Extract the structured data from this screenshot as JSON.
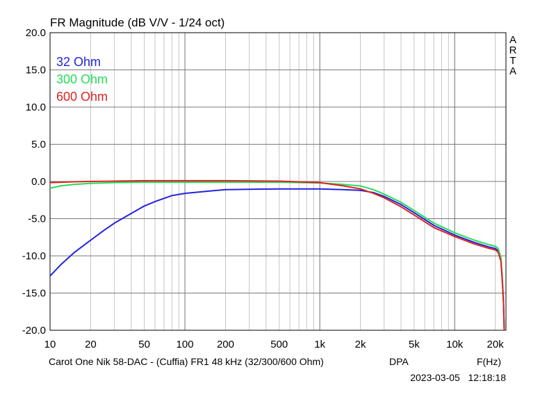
{
  "chart_data": {
    "type": "line",
    "title": "FR Magnitude (dB V/V - 1/24 oct)",
    "side_label": "ARTA",
    "x_scale": "log",
    "xlim": [
      10,
      24000
    ],
    "ylim": [
      -20,
      20
    ],
    "x_ticks": [
      {
        "value": 10,
        "label": "10"
      },
      {
        "value": 20,
        "label": "20"
      },
      {
        "value": 50,
        "label": "50"
      },
      {
        "value": 100,
        "label": "100"
      },
      {
        "value": 200,
        "label": "200"
      },
      {
        "value": 500,
        "label": "500"
      },
      {
        "value": 1000,
        "label": "1k"
      },
      {
        "value": 2000,
        "label": "2k"
      },
      {
        "value": 5000,
        "label": "5k"
      },
      {
        "value": 10000,
        "label": "10k"
      },
      {
        "value": 20000,
        "label": "20k"
      }
    ],
    "y_ticks": [
      {
        "value": 20,
        "label": "20.0"
      },
      {
        "value": 15,
        "label": "15.0"
      },
      {
        "value": 10,
        "label": "10.0"
      },
      {
        "value": 5,
        "label": "5.0"
      },
      {
        "value": 0,
        "label": "0.0"
      },
      {
        "value": -5,
        "label": "-5.0"
      },
      {
        "value": -10,
        "label": "-10.0"
      },
      {
        "value": -15,
        "label": "-15.0"
      },
      {
        "value": -20,
        "label": "-20.0"
      }
    ],
    "grid": true,
    "legend_position": "top-left",
    "series": [
      {
        "name": "32 Ohm",
        "color": "#2222dd",
        "points": [
          [
            10,
            -12.7
          ],
          [
            12,
            -11.2
          ],
          [
            15,
            -9.6
          ],
          [
            20,
            -7.9
          ],
          [
            25,
            -6.6
          ],
          [
            30,
            -5.6
          ],
          [
            40,
            -4.3
          ],
          [
            50,
            -3.3
          ],
          [
            60,
            -2.7
          ],
          [
            80,
            -1.9
          ],
          [
            100,
            -1.6
          ],
          [
            150,
            -1.3
          ],
          [
            200,
            -1.1
          ],
          [
            300,
            -1.05
          ],
          [
            500,
            -1.0
          ],
          [
            1000,
            -1.0
          ],
          [
            1500,
            -1.1
          ],
          [
            2000,
            -1.2
          ],
          [
            2500,
            -1.5
          ],
          [
            3000,
            -2.0
          ],
          [
            4000,
            -3.1
          ],
          [
            5000,
            -4.2
          ],
          [
            7000,
            -5.9
          ],
          [
            10000,
            -7.2
          ],
          [
            14000,
            -8.2
          ],
          [
            18000,
            -8.8
          ],
          [
            20000,
            -9.0
          ],
          [
            21000,
            -9.3
          ],
          [
            22000,
            -10.5
          ],
          [
            22500,
            -13.0
          ],
          [
            23000,
            -16.0
          ],
          [
            23300,
            -20.0
          ]
        ]
      },
      {
        "name": "300 Ohm",
        "color": "#22dd55",
        "points": [
          [
            10,
            -0.9
          ],
          [
            12,
            -0.6
          ],
          [
            15,
            -0.4
          ],
          [
            20,
            -0.25
          ],
          [
            30,
            -0.15
          ],
          [
            50,
            -0.1
          ],
          [
            100,
            -0.1
          ],
          [
            300,
            -0.1
          ],
          [
            500,
            -0.1
          ],
          [
            1000,
            -0.2
          ],
          [
            1500,
            -0.4
          ],
          [
            2000,
            -0.6
          ],
          [
            2500,
            -1.1
          ],
          [
            3000,
            -1.7
          ],
          [
            4000,
            -2.8
          ],
          [
            5000,
            -3.9
          ],
          [
            7000,
            -5.6
          ],
          [
            10000,
            -6.9
          ],
          [
            14000,
            -7.9
          ],
          [
            18000,
            -8.5
          ],
          [
            20000,
            -8.7
          ],
          [
            21000,
            -9.0
          ],
          [
            22000,
            -10.2
          ],
          [
            22500,
            -12.8
          ],
          [
            23000,
            -16.0
          ],
          [
            23300,
            -20.0
          ]
        ]
      },
      {
        "name": "600 Ohm",
        "color": "#dd2222",
        "points": [
          [
            10,
            -0.15
          ],
          [
            15,
            -0.05
          ],
          [
            20,
            0.0
          ],
          [
            30,
            0.05
          ],
          [
            50,
            0.1
          ],
          [
            100,
            0.1
          ],
          [
            200,
            0.1
          ],
          [
            500,
            0.05
          ],
          [
            1000,
            -0.15
          ],
          [
            1500,
            -0.6
          ],
          [
            2000,
            -1.0
          ],
          [
            2500,
            -1.6
          ],
          [
            3000,
            -2.2
          ],
          [
            4000,
            -3.4
          ],
          [
            5000,
            -4.5
          ],
          [
            7000,
            -6.2
          ],
          [
            10000,
            -7.4
          ],
          [
            14000,
            -8.4
          ],
          [
            18000,
            -9.0
          ],
          [
            20000,
            -9.2
          ],
          [
            21000,
            -9.5
          ],
          [
            22000,
            -10.7
          ],
          [
            22500,
            -13.2
          ],
          [
            23000,
            -16.2
          ],
          [
            23300,
            -20.0
          ]
        ]
      }
    ]
  },
  "footer": {
    "description": "Carot One Nik 58-DAC - (Cuffia) FR1 48 kHz (32/300/600 Ohm)",
    "mode": "DPA",
    "x_unit": "F(Hz)",
    "timestamp": "2023-03-05   12:18:18"
  }
}
